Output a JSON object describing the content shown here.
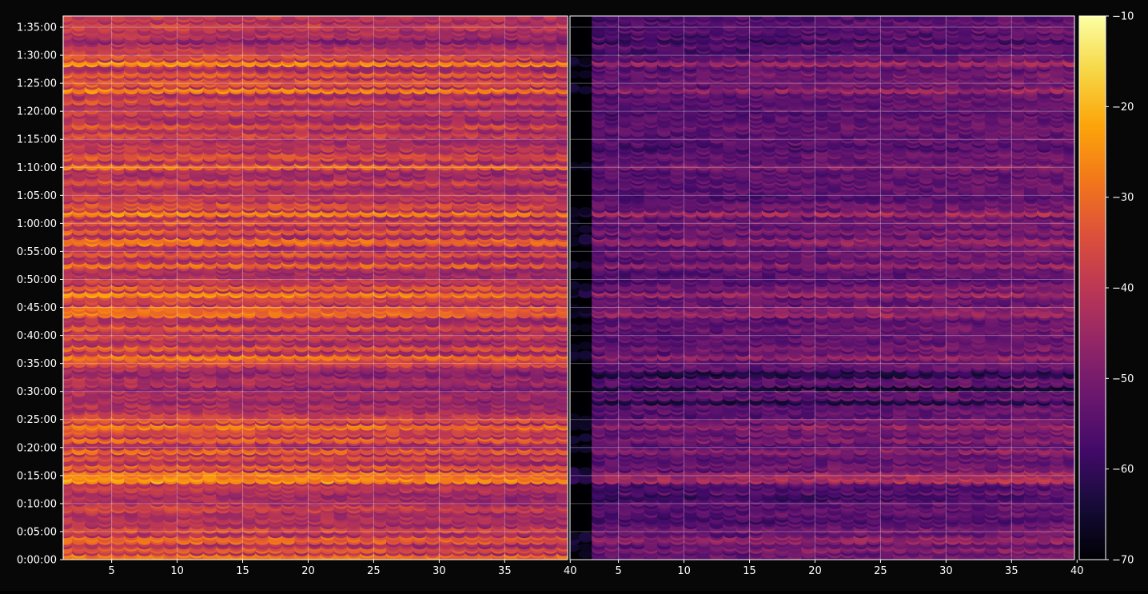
{
  "chart_data": {
    "type": "heatmap",
    "title": "",
    "colormap": "inferno",
    "background_color": "#070707",
    "grid": true,
    "colorbar": {
      "position": "right",
      "range": [
        -70,
        -10
      ],
      "ticks": [
        -10,
        -20,
        -30,
        -40,
        -50,
        -60,
        -70
      ],
      "tick_labels": [
        "−10",
        "−20",
        "−30",
        "−40",
        "−50",
        "−60",
        "−70"
      ]
    },
    "y_axis": {
      "label": "",
      "unit": "seconds",
      "range": [
        0,
        5820
      ],
      "ticks": [
        0,
        300,
        600,
        900,
        1200,
        1500,
        1800,
        2100,
        2400,
        2700,
        3000,
        3300,
        3600,
        3900,
        4200,
        4500,
        4800,
        5100,
        5400,
        5700
      ],
      "tick_labels": [
        "0:00:00",
        "0:05:00",
        "0:10:00",
        "0:15:00",
        "0:20:00",
        "0:25:00",
        "0:30:00",
        "0:35:00",
        "0:40:00",
        "0:45:00",
        "0:50:00",
        "0:55:00",
        "1:00:00",
        "1:05:00",
        "1:10:00",
        "1:15:00",
        "1:20:00",
        "1:25:00",
        "1:30:00",
        "1:35:00"
      ]
    },
    "panels": [
      {
        "name": "",
        "xlabel": "",
        "xlim": [
          1.3,
          39.8
        ],
        "x_ticks": [
          5,
          10,
          15,
          20,
          25,
          30,
          35,
          40
        ],
        "x_tick_labels": [
          "5",
          "10",
          "15",
          "20",
          "25",
          "30",
          "35",
          "40"
        ],
        "base_level": -34,
        "end_x_drop": -4,
        "bands": [
          {
            "t": 30,
            "v": -27
          },
          {
            "t": 120,
            "v": -32
          },
          {
            "t": 230,
            "v": -30
          },
          {
            "t": 330,
            "v": -34
          },
          {
            "t": 440,
            "v": -40
          },
          {
            "t": 560,
            "v": -36
          },
          {
            "t": 680,
            "v": -42
          },
          {
            "t": 780,
            "v": -38
          },
          {
            "t": 870,
            "v": -23
          },
          {
            "t": 920,
            "v": -26
          },
          {
            "t": 1000,
            "v": -31
          },
          {
            "t": 1100,
            "v": -34
          },
          {
            "t": 1170,
            "v": -30
          },
          {
            "t": 1300,
            "v": -30
          },
          {
            "t": 1380,
            "v": -34
          },
          {
            "t": 1440,
            "v": -27
          },
          {
            "t": 1510,
            "v": -32
          },
          {
            "t": 1560,
            "v": -36
          },
          {
            "t": 1700,
            "v": -44
          },
          {
            "t": 1850,
            "v": -46
          },
          {
            "t": 2000,
            "v": -45
          },
          {
            "t": 2120,
            "v": -34
          },
          {
            "t": 2180,
            "v": -27
          },
          {
            "t": 2280,
            "v": -32
          },
          {
            "t": 2400,
            "v": -35
          },
          {
            "t": 2500,
            "v": -33
          },
          {
            "t": 2640,
            "v": -28
          },
          {
            "t": 2700,
            "v": -30
          },
          {
            "t": 2790,
            "v": -35
          },
          {
            "t": 2860,
            "v": -25
          },
          {
            "t": 2920,
            "v": -31
          },
          {
            "t": 3000,
            "v": -37
          },
          {
            "t": 3170,
            "v": -29
          },
          {
            "t": 3280,
            "v": -32
          },
          {
            "t": 3420,
            "v": -28
          },
          {
            "t": 3520,
            "v": -31
          },
          {
            "t": 3620,
            "v": -32
          },
          {
            "t": 3720,
            "v": -25
          },
          {
            "t": 3800,
            "v": -33
          },
          {
            "t": 3900,
            "v": -37
          },
          {
            "t": 4050,
            "v": -34
          },
          {
            "t": 4220,
            "v": -28
          },
          {
            "t": 4330,
            "v": -33
          },
          {
            "t": 4430,
            "v": -38
          },
          {
            "t": 4560,
            "v": -35
          },
          {
            "t": 4650,
            "v": -33
          },
          {
            "t": 4800,
            "v": -36
          },
          {
            "t": 4920,
            "v": -34
          },
          {
            "t": 5040,
            "v": -25
          },
          {
            "t": 5120,
            "v": -32
          },
          {
            "t": 5200,
            "v": -31
          },
          {
            "t": 5330,
            "v": -24
          },
          {
            "t": 5400,
            "v": -33
          },
          {
            "t": 5460,
            "v": -38
          },
          {
            "t": 5560,
            "v": -46
          },
          {
            "t": 5640,
            "v": -40
          },
          {
            "t": 5720,
            "v": -37
          },
          {
            "t": 5800,
            "v": -38
          }
        ]
      },
      {
        "name": "",
        "xlabel": "",
        "xlim": [
          1.3,
          39.8
        ],
        "x_ticks": [
          5,
          10,
          15,
          20,
          25,
          30,
          35,
          40
        ],
        "x_tick_labels": [
          "5",
          "10",
          "15",
          "20",
          "25",
          "30",
          "35",
          "40"
        ],
        "base_level": -48,
        "end_x_drop": 3,
        "bands": [
          {
            "t": 30,
            "v": -53
          },
          {
            "t": 120,
            "v": -50
          },
          {
            "t": 230,
            "v": -48
          },
          {
            "t": 330,
            "v": -52
          },
          {
            "t": 440,
            "v": -58
          },
          {
            "t": 560,
            "v": -56
          },
          {
            "t": 680,
            "v": -60
          },
          {
            "t": 780,
            "v": -58
          },
          {
            "t": 870,
            "v": -44
          },
          {
            "t": 920,
            "v": -46
          },
          {
            "t": 1000,
            "v": -52
          },
          {
            "t": 1100,
            "v": -55
          },
          {
            "t": 1170,
            "v": -49
          },
          {
            "t": 1300,
            "v": -50
          },
          {
            "t": 1380,
            "v": -53
          },
          {
            "t": 1440,
            "v": -48
          },
          {
            "t": 1510,
            "v": -52
          },
          {
            "t": 1560,
            "v": -56
          },
          {
            "t": 1700,
            "v": -64
          },
          {
            "t": 1850,
            "v": -66
          },
          {
            "t": 2000,
            "v": -64
          },
          {
            "t": 2120,
            "v": -54
          },
          {
            "t": 2180,
            "v": -48
          },
          {
            "t": 2280,
            "v": -52
          },
          {
            "t": 2400,
            "v": -55
          },
          {
            "t": 2500,
            "v": -53
          },
          {
            "t": 2640,
            "v": -47
          },
          {
            "t": 2700,
            "v": -50
          },
          {
            "t": 2790,
            "v": -54
          },
          {
            "t": 2860,
            "v": -46
          },
          {
            "t": 2920,
            "v": -51
          },
          {
            "t": 3000,
            "v": -57
          },
          {
            "t": 3170,
            "v": -48
          },
          {
            "t": 3280,
            "v": -52
          },
          {
            "t": 3420,
            "v": -48
          },
          {
            "t": 3520,
            "v": -51
          },
          {
            "t": 3620,
            "v": -52
          },
          {
            "t": 3720,
            "v": -45
          },
          {
            "t": 3800,
            "v": -53
          },
          {
            "t": 3900,
            "v": -57
          },
          {
            "t": 4050,
            "v": -55
          },
          {
            "t": 4220,
            "v": -50
          },
          {
            "t": 4330,
            "v": -54
          },
          {
            "t": 4430,
            "v": -58
          },
          {
            "t": 4560,
            "v": -56
          },
          {
            "t": 4650,
            "v": -54
          },
          {
            "t": 4800,
            "v": -57
          },
          {
            "t": 4920,
            "v": -55
          },
          {
            "t": 5040,
            "v": -47
          },
          {
            "t": 5120,
            "v": -53
          },
          {
            "t": 5200,
            "v": -52
          },
          {
            "t": 5330,
            "v": -46
          },
          {
            "t": 5400,
            "v": -54
          },
          {
            "t": 5460,
            "v": -58
          },
          {
            "t": 5560,
            "v": -60
          },
          {
            "t": 5640,
            "v": -58
          },
          {
            "t": 5720,
            "v": -56
          },
          {
            "t": 5800,
            "v": -58
          }
        ]
      }
    ]
  }
}
